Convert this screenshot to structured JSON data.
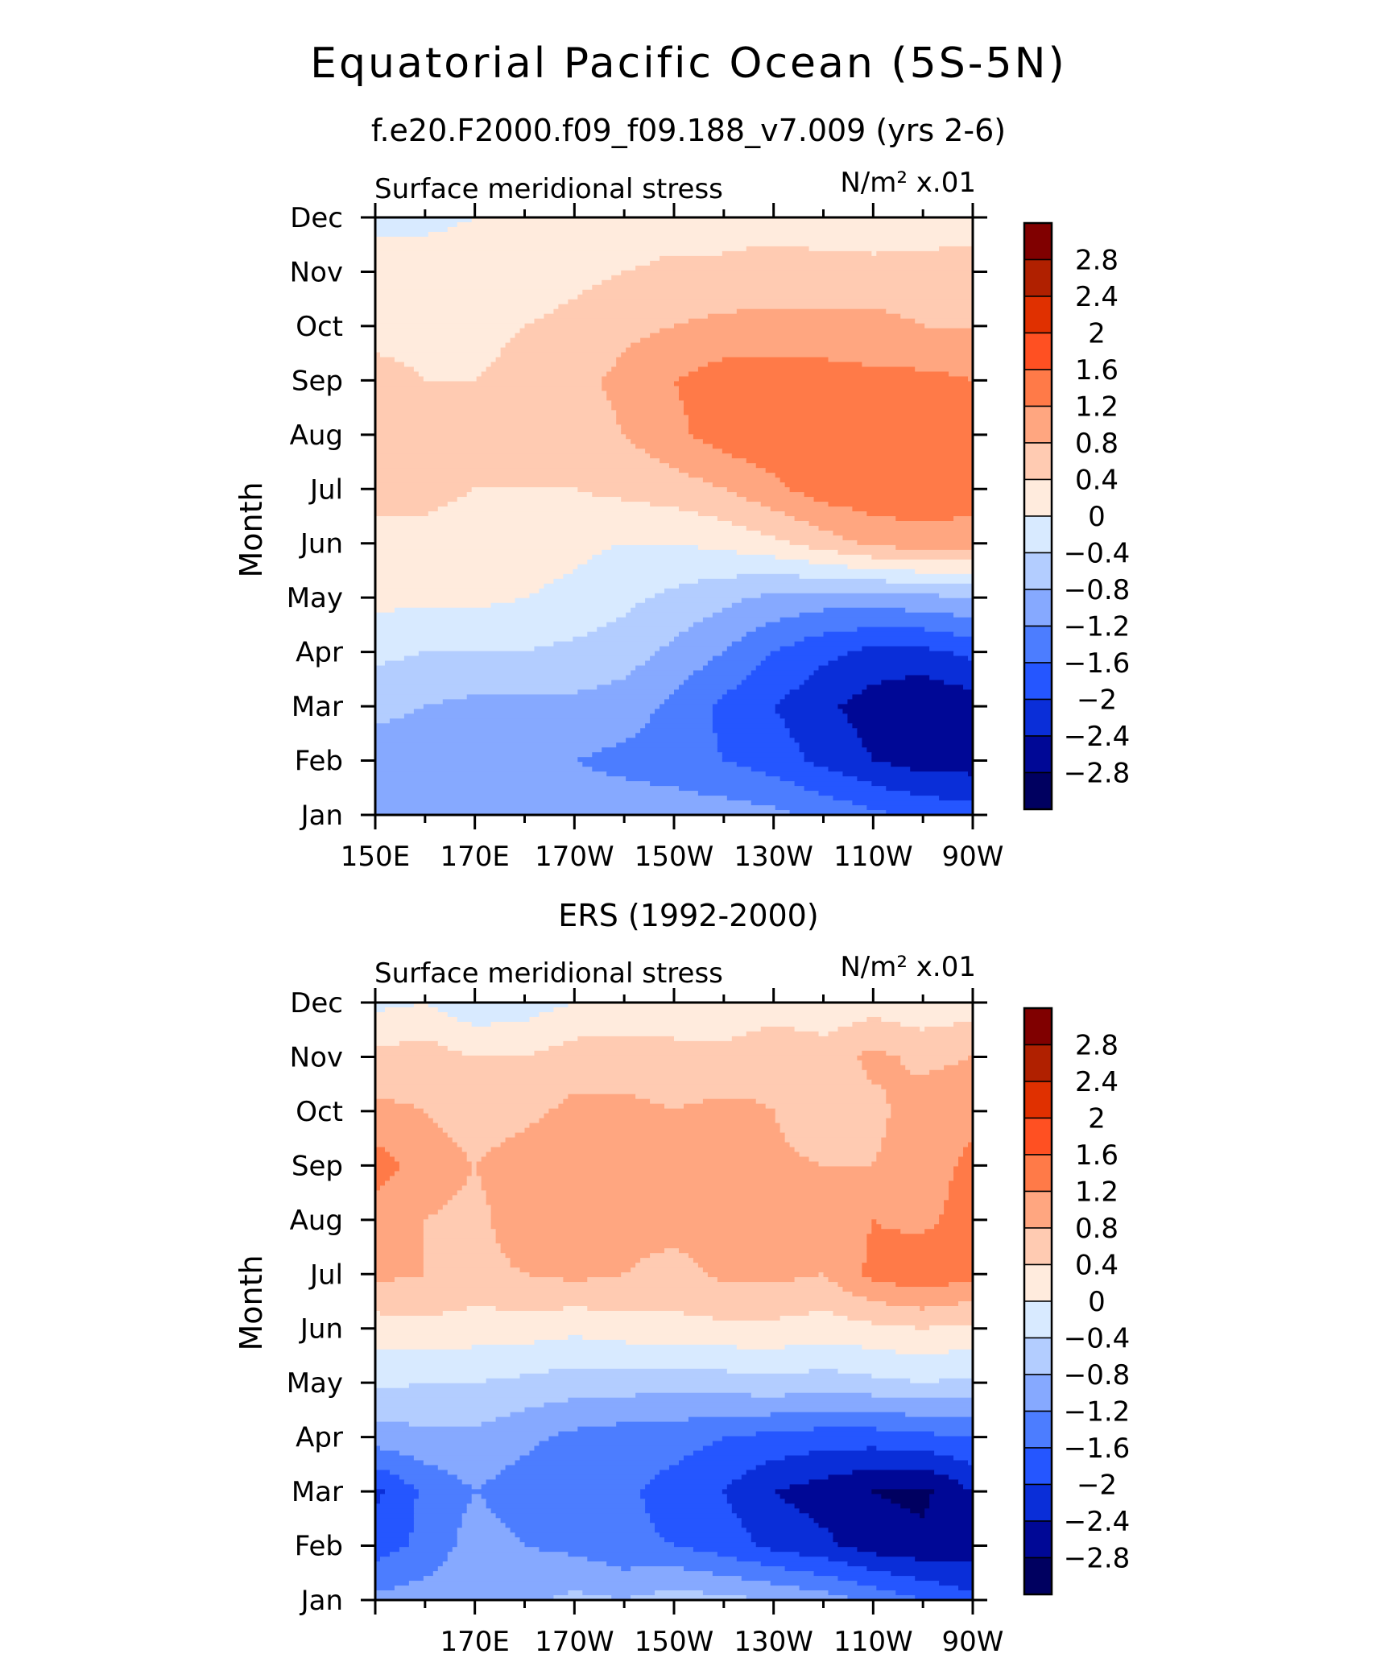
{
  "page": {
    "title": "Equatorial Pacific Ocean (5S-5N)"
  },
  "levels": {
    "labels": [
      "2.8",
      "2.4",
      "2",
      "1.6",
      "1.2",
      "0.8",
      "0.4",
      "0",
      "-0.4",
      "-0.8",
      "-1.2",
      "-1.6",
      "-2",
      "-2.4",
      "-2.8"
    ],
    "colors": [
      "#800000",
      "#b02000",
      "#e03000",
      "#ff5022",
      "#ff7a48",
      "#ffa680",
      "#ffcbb2",
      "#ffebdd",
      "#d8eaff",
      "#b3cdff",
      "#86a9ff",
      "#4c7dff",
      "#2556ff",
      "#0a2ed8",
      "#000896",
      "#000060"
    ],
    "breaks": [
      2.8,
      2.4,
      2.0,
      1.6,
      1.2,
      0.8,
      0.4,
      0,
      -0.4,
      -0.8,
      -1.2,
      -1.6,
      -2.0,
      -2.4,
      -2.8
    ]
  },
  "chart_data": [
    {
      "type": "heatmap",
      "title": "f.e20.F2000.f09_f09.188_v7.009 (yrs 2-6)",
      "left_label": "Surface meridional stress",
      "units": "N/m² x.01",
      "ylabel": "Month",
      "x_ticks": [
        "150E",
        "170E",
        "170W",
        "150W",
        "130W",
        "110W",
        "90W"
      ],
      "y_ticks": [
        "Jan",
        "Feb",
        "Mar",
        "Apr",
        "May",
        "Jun",
        "Jul",
        "Aug",
        "Sep",
        "Oct",
        "Nov",
        "Dec"
      ],
      "x": [
        150,
        160,
        170,
        180,
        190,
        200,
        210,
        220,
        230,
        240,
        250,
        260,
        270
      ],
      "y": [
        "Jan",
        "Feb",
        "Mar",
        "Apr",
        "May",
        "Jun",
        "Jul",
        "Aug",
        "Sep",
        "Oct",
        "Nov",
        "Dec"
      ],
      "values": [
        [
          -1.0,
          -1.0,
          -1.0,
          -1.0,
          -1.0,
          -1.0,
          -1.0,
          -1.0,
          -1.1,
          -1.3,
          -1.5,
          -1.7,
          -1.8
        ],
        [
          -1.0,
          -1.0,
          -1.1,
          -1.1,
          -1.2,
          -1.3,
          -1.4,
          -1.6,
          -1.8,
          -2.1,
          -2.4,
          -2.6,
          -2.6
        ],
        [
          -0.7,
          -0.8,
          -0.9,
          -0.9,
          -0.9,
          -1.0,
          -1.3,
          -1.7,
          -2.0,
          -2.3,
          -2.6,
          -2.8,
          -2.6
        ],
        [
          -0.3,
          -0.4,
          -0.4,
          -0.4,
          -0.5,
          -0.6,
          -0.9,
          -1.2,
          -1.6,
          -1.9,
          -2.1,
          -2.1,
          -1.9
        ],
        [
          0.1,
          0.1,
          0.1,
          0.0,
          -0.1,
          -0.3,
          -0.5,
          -0.7,
          -0.9,
          -1.0,
          -1.0,
          -0.9,
          -0.8
        ],
        [
          0.3,
          0.3,
          0.2,
          0.2,
          0.1,
          0.0,
          0.0,
          0.1,
          0.3,
          0.6,
          0.9,
          1.0,
          1.0
        ],
        [
          0.5,
          0.5,
          0.4,
          0.4,
          0.4,
          0.5,
          0.6,
          0.8,
          1.1,
          1.4,
          1.5,
          1.5,
          1.4
        ],
        [
          0.6,
          0.6,
          0.5,
          0.5,
          0.6,
          0.8,
          1.1,
          1.4,
          1.5,
          1.5,
          1.5,
          1.5,
          1.4
        ],
        [
          0.5,
          0.4,
          0.4,
          0.5,
          0.7,
          0.9,
          1.2,
          1.4,
          1.4,
          1.4,
          1.3,
          1.3,
          1.2
        ],
        [
          0.3,
          0.3,
          0.3,
          0.4,
          0.5,
          0.7,
          0.8,
          0.9,
          0.9,
          0.9,
          0.9,
          0.8,
          0.8
        ],
        [
          0.2,
          0.2,
          0.2,
          0.2,
          0.3,
          0.4,
          0.5,
          0.5,
          0.6,
          0.6,
          0.6,
          0.6,
          0.6
        ],
        [
          -0.1,
          -0.1,
          0.0,
          0.0,
          0.1,
          0.1,
          0.2,
          0.2,
          0.2,
          0.1,
          0.0,
          0.1,
          0.2
        ]
      ]
    },
    {
      "type": "heatmap",
      "title": "ERS (1992-2000)",
      "left_label": "Surface meridional stress",
      "units": "N/m² x.01",
      "ylabel": "Month",
      "x_ticks": [
        "170E",
        "170W",
        "150W",
        "130W",
        "110W",
        "90W"
      ],
      "y_ticks": [
        "Jan",
        "Feb",
        "Mar",
        "Apr",
        "May",
        "Jun",
        "Jul",
        "Aug",
        "Sep",
        "Oct",
        "Nov",
        "Dec"
      ],
      "x": [
        150,
        160,
        170,
        180,
        190,
        200,
        210,
        220,
        230,
        240,
        250,
        260,
        270
      ],
      "y": [
        "Jan",
        "Feb",
        "Mar",
        "Apr",
        "May",
        "Jun",
        "Jul",
        "Aug",
        "Sep",
        "Oct",
        "Nov",
        "Dec"
      ],
      "values": [
        [
          -1.1,
          -1.0,
          -0.8,
          -0.9,
          -0.7,
          -0.8,
          -0.6,
          -0.7,
          -0.8,
          -1.0,
          -1.3,
          -1.6,
          -1.9
        ],
        [
          -1.8,
          -1.5,
          -1.0,
          -1.2,
          -1.3,
          -1.5,
          -1.6,
          -1.8,
          -2.1,
          -2.3,
          -2.6,
          -2.7,
          -2.6
        ],
        [
          -2.1,
          -1.5,
          -1.2,
          -1.4,
          -1.6,
          -1.5,
          -1.8,
          -2.0,
          -2.4,
          -2.6,
          -2.8,
          -2.9,
          -2.4
        ],
        [
          -1.0,
          -0.9,
          -0.9,
          -1.1,
          -1.3,
          -1.4,
          -1.4,
          -1.6,
          -1.7,
          -1.8,
          -1.8,
          -1.7,
          -1.6
        ],
        [
          -0.3,
          -0.4,
          -0.4,
          -0.5,
          -0.6,
          -0.6,
          -0.7,
          -0.6,
          -0.5,
          -0.6,
          -0.5,
          -0.4,
          -0.5
        ],
        [
          0.2,
          0.3,
          0.2,
          0.2,
          0.1,
          0.2,
          0.3,
          0.3,
          0.3,
          0.2,
          0.3,
          0.4,
          0.3
        ],
        [
          0.9,
          0.8,
          0.7,
          0.8,
          0.9,
          0.8,
          0.6,
          0.9,
          0.9,
          0.8,
          1.3,
          1.5,
          1.3
        ],
        [
          1.0,
          0.8,
          0.7,
          1.0,
          1.1,
          1.0,
          1.0,
          1.1,
          1.0,
          0.9,
          1.2,
          1.1,
          1.4
        ],
        [
          1.4,
          1.0,
          0.8,
          1.0,
          1.1,
          1.1,
          1.0,
          1.0,
          0.9,
          0.8,
          0.8,
          1.0,
          1.3
        ],
        [
          0.9,
          0.8,
          0.6,
          0.7,
          0.9,
          0.9,
          0.8,
          0.9,
          0.8,
          0.5,
          0.7,
          1.0,
          1.1
        ],
        [
          0.5,
          0.6,
          0.4,
          0.4,
          0.6,
          0.6,
          0.6,
          0.5,
          0.7,
          0.6,
          0.9,
          0.7,
          0.8
        ],
        [
          -0.1,
          0.0,
          -0.3,
          -0.2,
          0.0,
          0.1,
          0.0,
          0.1,
          0.2,
          0.1,
          0.2,
          0.1,
          0.2
        ]
      ]
    }
  ]
}
